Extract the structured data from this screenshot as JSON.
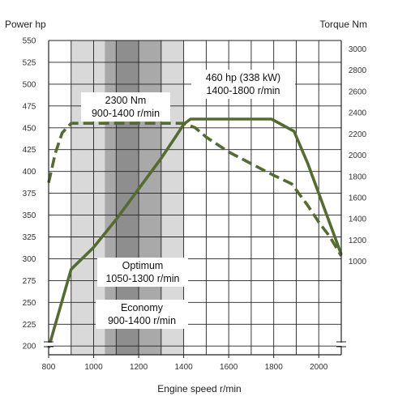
{
  "chart_data": {
    "type": "line",
    "x": [
      800,
      900,
      1000,
      1100,
      1200,
      1300,
      1400,
      1500,
      1600,
      1700,
      1800,
      1900,
      2000,
      2100
    ],
    "xlabel": "Engine speed r/min",
    "xlim": [
      800,
      2100
    ],
    "xticks": [
      800,
      1000,
      1200,
      1400,
      1600,
      1800,
      2000
    ],
    "ylabel_left": "Power hp",
    "ylim_left": [
      190,
      550
    ],
    "yticks_left": [
      200,
      225,
      250,
      275,
      300,
      325,
      350,
      375,
      400,
      425,
      450,
      475,
      500,
      525,
      550
    ],
    "ylabel_right": "Torque Nm",
    "ylim_right": [
      120,
      3080
    ],
    "yticks_right": [
      1000,
      1200,
      1400,
      1600,
      1800,
      2000,
      2200,
      2400,
      2600,
      2800,
      3000
    ],
    "grid": true,
    "series": [
      {
        "axis": "left",
        "style": "solid",
        "color": "#556b2f",
        "points": [
          [
            800,
            198
          ],
          [
            850,
            243
          ],
          [
            900,
            288
          ],
          [
            1000,
            313
          ],
          [
            1100,
            345
          ],
          [
            1200,
            380
          ],
          [
            1300,
            415
          ],
          [
            1370,
            442
          ],
          [
            1400,
            454
          ],
          [
            1430,
            460
          ],
          [
            1500,
            460
          ],
          [
            1600,
            460
          ],
          [
            1700,
            460
          ],
          [
            1790,
            460
          ],
          [
            1840,
            453
          ],
          [
            1890,
            446
          ],
          [
            1950,
            410
          ],
          [
            2000,
            375
          ],
          [
            2050,
            340
          ],
          [
            2100,
            305
          ]
        ]
      },
      {
        "axis": "right",
        "style": "dashed",
        "color": "#556b2f",
        "points": [
          [
            800,
            1740
          ],
          [
            830,
            2020
          ],
          [
            860,
            2210
          ],
          [
            900,
            2300
          ],
          [
            1000,
            2300
          ],
          [
            1100,
            2300
          ],
          [
            1200,
            2300
          ],
          [
            1300,
            2300
          ],
          [
            1400,
            2300
          ],
          [
            1450,
            2260
          ],
          [
            1500,
            2170
          ],
          [
            1600,
            2030
          ],
          [
            1700,
            1920
          ],
          [
            1800,
            1810
          ],
          [
            1880,
            1730
          ],
          [
            1950,
            1530
          ],
          [
            2000,
            1370
          ],
          [
            2050,
            1230
          ],
          [
            2100,
            1050
          ]
        ]
      }
    ],
    "bands": [
      {
        "range": [
          900,
          1400
        ],
        "color": "#d9d9d9"
      },
      {
        "range": [
          1050,
          1300
        ],
        "color": "#a9a9a9"
      },
      {
        "range": [
          1100,
          1200
        ],
        "color": "#8e8e8e"
      }
    ],
    "annotations": {
      "power_peak": [
        "460 hp (338 kW)",
        "1400-1800 r/min"
      ],
      "torque_peak": [
        "2300 Nm",
        "900-1400 r/min"
      ],
      "optimum": [
        "Optimum",
        "1050-1300 r/min"
      ],
      "economy": [
        "Economy",
        "900-1400 r/min"
      ]
    }
  }
}
